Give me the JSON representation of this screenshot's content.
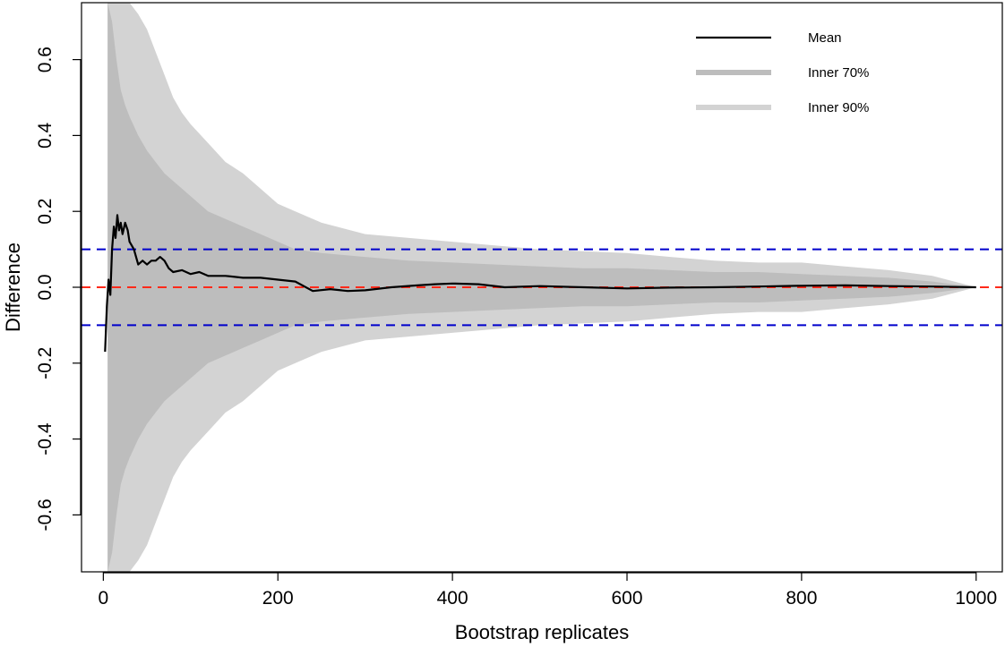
{
  "chart_data": {
    "type": "line",
    "title": "",
    "xlabel": "Bootstrap replicates",
    "ylabel": "Difference",
    "xlim": [
      -25,
      1030
    ],
    "ylim": [
      -0.75,
      0.75
    ],
    "xticks": [
      0,
      200,
      400,
      600,
      800,
      1000
    ],
    "xtick_labels": [
      "0",
      "200",
      "400",
      "600",
      "800",
      "1000"
    ],
    "yticks": [
      -0.6,
      -0.4,
      -0.2,
      0.0,
      0.2,
      0.4,
      0.6
    ],
    "ytick_labels": [
      "-0.6",
      "-0.4",
      "-0.2",
      "0.0",
      "0.2",
      "0.4",
      "0.6"
    ],
    "grid": false,
    "legend": {
      "position": "top-right",
      "entries": [
        {
          "label": "Mean",
          "color": "#000000"
        },
        {
          "label": "Inner 70%",
          "color": "#bdbdbd"
        },
        {
          "label": "Inner 90%",
          "color": "#d3d3d3"
        }
      ]
    },
    "reference_lines": [
      {
        "y": 0.1,
        "color": "#0000cc",
        "style": "dashed"
      },
      {
        "y": 0.0,
        "color": "#ff2a1a",
        "style": "dashed"
      },
      {
        "y": -0.1,
        "color": "#0000cc",
        "style": "dashed"
      }
    ],
    "series": [
      {
        "name": "Mean",
        "color": "#000000",
        "x": [
          2,
          4,
          6,
          8,
          10,
          12,
          14,
          16,
          18,
          20,
          22,
          25,
          28,
          30,
          35,
          40,
          45,
          50,
          55,
          60,
          65,
          70,
          75,
          80,
          90,
          100,
          110,
          120,
          140,
          160,
          180,
          200,
          220,
          240,
          260,
          280,
          300,
          330,
          360,
          380,
          400,
          430,
          460,
          500,
          550,
          600,
          650,
          700,
          750,
          800,
          850,
          900,
          950,
          1000
        ],
        "y": [
          -0.17,
          -0.05,
          0.02,
          -0.02,
          0.1,
          0.16,
          0.13,
          0.19,
          0.15,
          0.17,
          0.14,
          0.17,
          0.15,
          0.12,
          0.1,
          0.06,
          0.07,
          0.06,
          0.07,
          0.07,
          0.08,
          0.07,
          0.05,
          0.04,
          0.045,
          0.035,
          0.04,
          0.03,
          0.03,
          0.025,
          0.025,
          0.02,
          0.015,
          -0.01,
          -0.005,
          -0.01,
          -0.008,
          0.0,
          0.005,
          0.008,
          0.01,
          0.008,
          0.0,
          0.003,
          0.0,
          -0.003,
          -0.001,
          0.0,
          0.002,
          0.004,
          0.005,
          0.003,
          0.002,
          0.0
        ]
      }
    ],
    "bands": [
      {
        "name": "Inner 90%",
        "color": "#d3d3d3",
        "symmetric_about": 0,
        "x": [
          5,
          10,
          15,
          20,
          25,
          30,
          40,
          50,
          60,
          70,
          80,
          90,
          100,
          120,
          140,
          160,
          180,
          200,
          220,
          250,
          300,
          350,
          400,
          450,
          500,
          550,
          600,
          650,
          700,
          750,
          800,
          850,
          900,
          950,
          1000
        ],
        "upper": [
          0.75,
          0.75,
          0.75,
          0.75,
          0.75,
          0.75,
          0.72,
          0.68,
          0.62,
          0.56,
          0.5,
          0.46,
          0.43,
          0.38,
          0.33,
          0.3,
          0.26,
          0.22,
          0.2,
          0.17,
          0.14,
          0.13,
          0.12,
          0.11,
          0.1,
          0.095,
          0.09,
          0.08,
          0.07,
          0.065,
          0.065,
          0.055,
          0.045,
          0.03,
          0.0
        ]
      },
      {
        "name": "Inner 70%",
        "color": "#bdbdbd",
        "symmetric_about": 0,
        "x": [
          5,
          10,
          15,
          20,
          25,
          30,
          40,
          50,
          60,
          70,
          80,
          90,
          100,
          120,
          140,
          160,
          180,
          200,
          220,
          250,
          300,
          350,
          400,
          450,
          500,
          550,
          600,
          650,
          700,
          750,
          800,
          850,
          900,
          950,
          1000
        ],
        "upper": [
          0.75,
          0.7,
          0.6,
          0.52,
          0.48,
          0.45,
          0.4,
          0.36,
          0.33,
          0.3,
          0.28,
          0.26,
          0.24,
          0.2,
          0.18,
          0.16,
          0.14,
          0.12,
          0.1,
          0.09,
          0.08,
          0.07,
          0.065,
          0.06,
          0.055,
          0.05,
          0.05,
          0.045,
          0.04,
          0.04,
          0.035,
          0.03,
          0.025,
          0.015,
          0.0
        ]
      }
    ]
  }
}
